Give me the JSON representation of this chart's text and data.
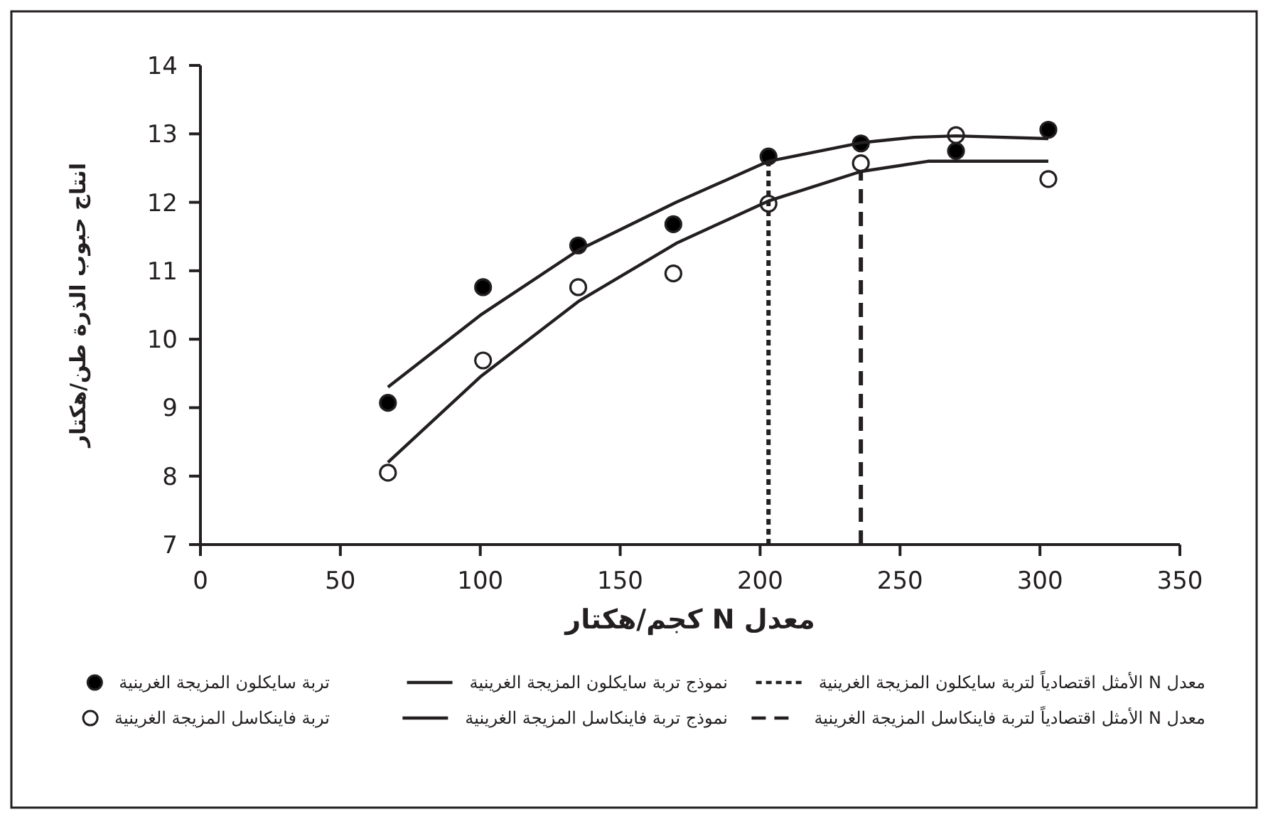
{
  "chart_data": {
    "type": "scatter",
    "xlabel": "معدل N كجم/هكتار",
    "ylabel": "انتاج حبوب الذرة طن/هكتار",
    "xlim": [
      0,
      350
    ],
    "xticks": [
      0,
      50,
      100,
      150,
      200,
      250,
      300,
      350
    ],
    "ylim": [
      7,
      14
    ],
    "yticks": [
      7,
      8,
      9,
      10,
      11,
      12,
      13,
      14
    ],
    "grid": false,
    "legend": "bottom",
    "marker": "circle",
    "series": [
      {
        "name": "تربة سايكلون المزيجة الغرينية",
        "color": "#000000",
        "x": [
          67,
          101,
          135,
          169,
          203,
          236,
          270,
          303
        ],
        "values": [
          9.07,
          10.76,
          11.37,
          11.68,
          12.67,
          12.86,
          12.75,
          13.06
        ]
      },
      {
        "name": "تربة فاينكاسل المزيجة الغرينية",
        "color": "#ffffff",
        "x": [
          67,
          101,
          135,
          169,
          203,
          236,
          270,
          303
        ],
        "values": [
          8.05,
          9.69,
          10.76,
          10.96,
          11.98,
          12.57,
          12.98,
          12.34
        ]
      },
      {
        "name": "نموذج تربة سايكلون المزيجة الغرينية",
        "type": "line",
        "color": "#231f20",
        "line_style": "solid",
        "marker": "none",
        "x": [
          67,
          100,
          135,
          170,
          203,
          236,
          255,
          270,
          303
        ],
        "values": [
          9.3,
          10.35,
          11.3,
          12.0,
          12.6,
          12.87,
          12.95,
          12.97,
          12.93
        ]
      },
      {
        "name": "نموذج تربة فاينكاسل المزيجة الغرينية",
        "type": "line",
        "color": "#231f20",
        "line_style": "solid",
        "marker": "none",
        "x": [
          67,
          100,
          135,
          170,
          203,
          236,
          260,
          303
        ],
        "values": [
          8.2,
          9.45,
          10.55,
          11.4,
          12.02,
          12.45,
          12.6,
          12.6
        ]
      }
    ],
    "ref_lines": [
      {
        "axis": "x",
        "value": 203,
        "label": "معدل N الأمثل اقتصادياً لتربة سايكلون المزيجة الغرينية",
        "color": "#231f20",
        "line_style": "dotted"
      },
      {
        "axis": "x",
        "value": 236,
        "label": "معدل N الأمثل اقتصادياً لتربة فاينكاسل المزيجة الغرينية",
        "color": "#231f20",
        "line_style": "dashed"
      }
    ]
  }
}
